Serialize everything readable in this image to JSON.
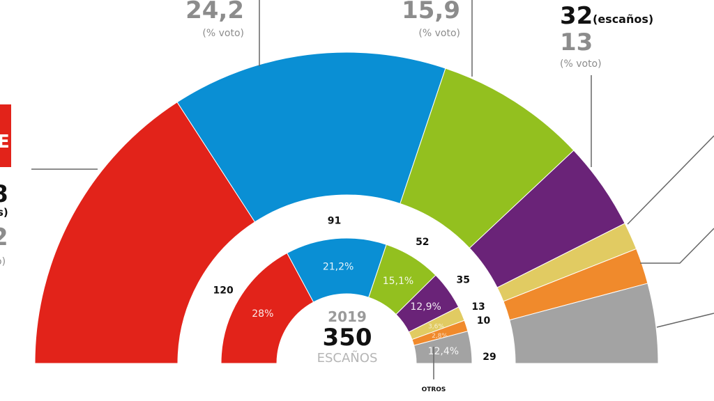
{
  "chart_data": {
    "type": "pie",
    "subtype": "parliament-semicircle",
    "outer_ring": {
      "segments": [
        {
          "color": "#e2231a",
          "seats_est": 111
        },
        {
          "color": "#0a8fd4",
          "seats_est": 100,
          "vote_pct": "24,2"
        },
        {
          "color": "#93c01f",
          "seats_est": 55,
          "vote_pct": "15,9"
        },
        {
          "color": "#6a2378",
          "seats_est": 32,
          "seats_label": "32",
          "vote_pct": "13"
        },
        {
          "color": "#e1cb62",
          "seats_est": 10
        },
        {
          "color": "#f08a2c",
          "seats_est": 13
        },
        {
          "color": "#a3a3a3",
          "seats_est": 29
        }
      ],
      "left_cut_labels": [
        "E",
        "8",
        "s)",
        "2",
        "o)"
      ]
    },
    "inner_ring": {
      "year": "2019",
      "total": "350",
      "total_label": "ESCAÑOS",
      "segments": [
        {
          "color": "#e2231a",
          "seats": 120,
          "seats_label": "120",
          "pct_label": "28%"
        },
        {
          "color": "#0a8fd4",
          "seats": 91,
          "seats_label": "91",
          "pct_label": "21,2%"
        },
        {
          "color": "#93c01f",
          "seats": 52,
          "seats_label": "52",
          "pct_label": "15,1%"
        },
        {
          "color": "#6a2378",
          "seats": 35,
          "seats_label": "35",
          "pct_label": "12,9%"
        },
        {
          "color": "#e1cb62",
          "seats": 13,
          "seats_label": "13",
          "pct_label": "3,6%"
        },
        {
          "color": "#f08a2c",
          "seats": 10,
          "seats_label": "10",
          "pct_label": "2,8%"
        },
        {
          "color": "#a3a3a3",
          "seats": 29,
          "seats_label": "29",
          "pct_label": "12,4%"
        }
      ],
      "others_label": "OTROS"
    },
    "vote_unit": "(% voto)",
    "seats_unit": "(escaños)"
  }
}
